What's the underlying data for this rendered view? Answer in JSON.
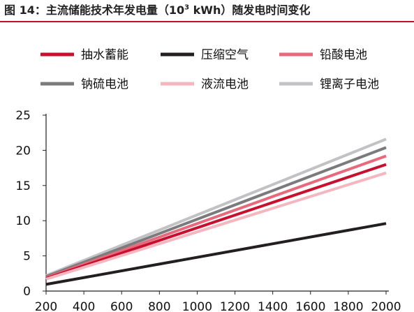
{
  "title": {
    "prefix": "图 14：主流储能技术年发电量（10",
    "sup": "3",
    "suffix": " kWh）随发电时间变化"
  },
  "chart_data": {
    "type": "line",
    "title": "图 14：主流储能技术年发电量（10³ kWh）随发电时间变化",
    "xlabel": "",
    "ylabel": "",
    "xlim": [
      200,
      2000
    ],
    "ylim": [
      0,
      25
    ],
    "xticks": [
      200,
      400,
      600,
      800,
      1000,
      1200,
      1400,
      1600,
      1800,
      2000
    ],
    "yticks": [
      0,
      5,
      10,
      15,
      20,
      25
    ],
    "grid": false,
    "legend_position": "top",
    "series": [
      {
        "name": "抽水蓄能",
        "color": "#c8102e",
        "x": [
          200,
          2000
        ],
        "y": [
          1.8,
          18.0
        ]
      },
      {
        "name": "压缩空气",
        "color": "#231f20",
        "x": [
          200,
          2000
        ],
        "y": [
          0.95,
          9.6
        ]
      },
      {
        "name": "铅酸电池",
        "color": "#e8687c",
        "x": [
          200,
          2000
        ],
        "y": [
          1.9,
          19.2
        ]
      },
      {
        "name": "钠硫电池",
        "color": "#7b7b7d",
        "x": [
          200,
          2000
        ],
        "y": [
          2.05,
          20.4
        ]
      },
      {
        "name": "液流电池",
        "color": "#f4b6bf",
        "x": [
          200,
          2000
        ],
        "y": [
          1.7,
          16.8
        ]
      },
      {
        "name": "锂离子电池",
        "color": "#c2c2c4",
        "x": [
          200,
          2000
        ],
        "y": [
          2.2,
          21.6
        ]
      }
    ]
  }
}
